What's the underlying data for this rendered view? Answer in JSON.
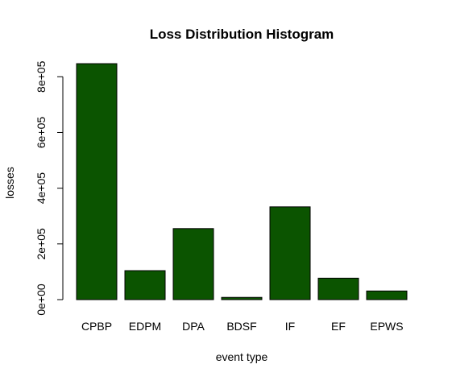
{
  "chart_data": {
    "type": "bar",
    "title": "Loss Distribution Histogram",
    "xlabel": "event type",
    "ylabel": "losses",
    "categories": [
      "CPBP",
      "EDPM",
      "DPA",
      "BDSF",
      "IF",
      "EF",
      "EPWS"
    ],
    "values": [
      847000,
      104000,
      255000,
      8000,
      333000,
      77000,
      31000
    ],
    "ylim": [
      0,
      850000
    ],
    "yticks": [
      0,
      200000,
      400000,
      600000,
      800000
    ],
    "ytick_labels": [
      "0e+00",
      "2e+05",
      "4e+05",
      "6e+05",
      "8e+05"
    ],
    "grid": false,
    "legend": "none",
    "colors": {
      "bar_fill": "#0b5400",
      "bar_stroke": "#000000",
      "axis": "#000000",
      "text": "#000000",
      "background": "#ffffff"
    }
  }
}
